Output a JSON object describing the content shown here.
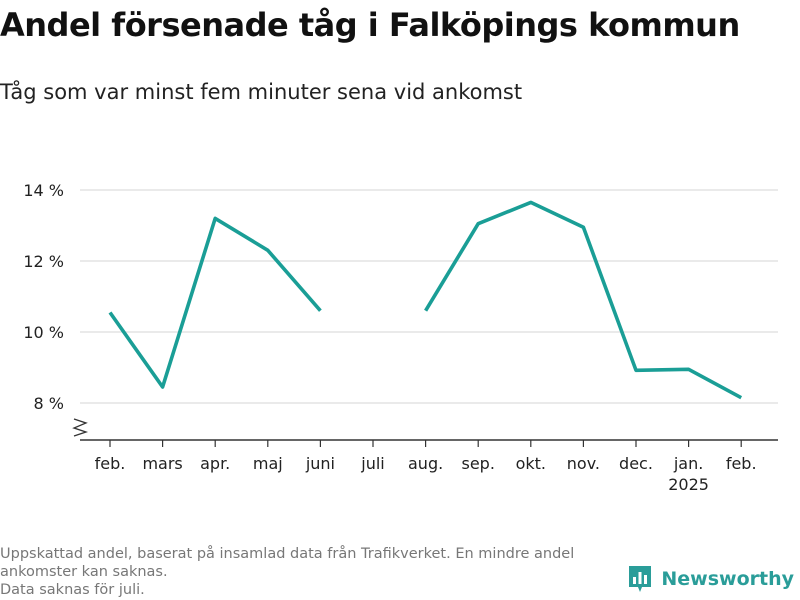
{
  "title": "Andel försenade tåg i Falköpings kommun",
  "subtitle": "Tåg som var minst fem minuter sena vid ankomst",
  "colors": {
    "line": "#1a9e96",
    "grid": "#dddddd",
    "axis": "#333333",
    "brand": "#2a9d99"
  },
  "footnotes": [
    "Uppskattad andel, baserat på insamlad data från Trafikverket. En mindre andel",
    "ankomster kan saknas.",
    "Data saknas för juli."
  ],
  "brand": {
    "name": "Newsworthy",
    "icon": "bar-chart-logo-icon"
  },
  "chart_data": {
    "type": "line",
    "categories": [
      "feb.",
      "mars",
      "apr.",
      "maj",
      "juni",
      "juli",
      "aug.",
      "sep.",
      "okt.",
      "nov.",
      "dec.",
      "jan.",
      "feb."
    ],
    "category_sublabels": [
      "",
      "",
      "",
      "",
      "",
      "",
      "",
      "",
      "",
      "",
      "",
      "2025",
      ""
    ],
    "series": [
      {
        "values": [
          10.55,
          8.45,
          13.2,
          12.3,
          10.6,
          null,
          10.6,
          13.05,
          13.65,
          12.95,
          8.92,
          8.95,
          8.15
        ]
      }
    ],
    "yticks": [
      8,
      10,
      12,
      14
    ],
    "ytick_labels": [
      "8 %",
      "10 %",
      "12 %",
      "14 %"
    ],
    "ylim": [
      7,
      14.5
    ],
    "y_axis_break": true,
    "grid": true,
    "legend": "none"
  }
}
